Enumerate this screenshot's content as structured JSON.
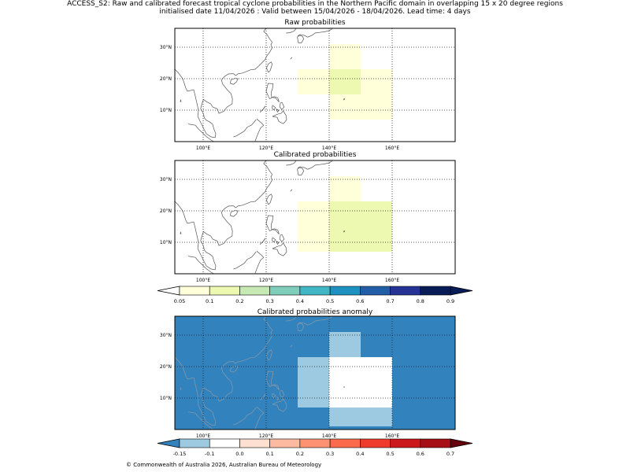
{
  "header": {
    "line1": "ACCESS_S2: Raw and calibrated forecast tropical cyclone probabilities in the Northern Pacific domain in overlapping 15 x 20 degree regions",
    "line2": "initialised date 11/04/2026 :  Valid between 15/04/2026 - 18/04/2026. Lead time: 4 days"
  },
  "map_axes": {
    "lon_ticks": [
      "100°E",
      "120°E",
      "140°E",
      "160°E"
    ],
    "lat_ticks": [
      "30°N",
      "20°N",
      "10°N"
    ]
  },
  "panels": [
    {
      "title": "Raw probabilities",
      "cells": [
        {
          "lon": [
            140,
            150
          ],
          "lat": [
            20,
            31
          ],
          "color": "#ffffd9"
        },
        {
          "lon": [
            130,
            140
          ],
          "lat": [
            15,
            23
          ],
          "color": "#ffffd9"
        },
        {
          "lon": [
            140,
            150
          ],
          "lat": [
            15,
            23
          ],
          "color": "#edf8b1"
        },
        {
          "lon": [
            150,
            160
          ],
          "lat": [
            15,
            23
          ],
          "color": "#ffffd9"
        },
        {
          "lon": [
            140,
            160
          ],
          "lat": [
            7,
            15
          ],
          "color": "#ffffd9"
        }
      ]
    },
    {
      "title": "Calibrated probabilities",
      "cells": [
        {
          "lon": [
            140,
            150
          ],
          "lat": [
            23,
            31
          ],
          "color": "#ffffd9"
        },
        {
          "lon": [
            130,
            140
          ],
          "lat": [
            7,
            23
          ],
          "color": "#ffffd9"
        },
        {
          "lon": [
            140,
            160
          ],
          "lat": [
            7,
            23
          ],
          "color": "#edf8b1"
        }
      ]
    },
    {
      "title": "Calibrated probabilities anomaly",
      "background": "#3182bd",
      "cells": [
        {
          "lon": [
            140,
            150
          ],
          "lat": [
            23,
            31
          ],
          "color": "#9ecae1"
        },
        {
          "lon": [
            130,
            140
          ],
          "lat": [
            7,
            23
          ],
          "color": "#9ecae1"
        },
        {
          "lon": [
            140,
            160
          ],
          "lat": [
            7,
            23
          ],
          "color": "#ffffff"
        },
        {
          "lon": [
            140,
            160
          ],
          "lat": [
            1,
            7
          ],
          "color": "#9ecae1"
        }
      ]
    }
  ],
  "colorbar_prob": {
    "ticks": [
      "0.05",
      "0.1",
      "0.2",
      "0.3",
      "0.4",
      "0.5",
      "0.6",
      "0.7",
      "0.8",
      "0.9"
    ],
    "under": "#ffffff",
    "over": "#081d58",
    "colors": [
      "#ffffd9",
      "#edf8b1",
      "#c7e9b4",
      "#7fcdbb",
      "#41b6c4",
      "#1d91c0",
      "#225ea8",
      "#253494",
      "#081d58"
    ]
  },
  "colorbar_anom": {
    "ticks": [
      "-0.15",
      "-0.1",
      "0.0",
      "0.1",
      "0.2",
      "0.3",
      "0.4",
      "0.5",
      "0.6",
      "0.7"
    ],
    "under": "#3182bd",
    "over": "#67000d",
    "colors": [
      "#9ecae1",
      "#ffffff",
      "#fee0d2",
      "#fcbba1",
      "#fc9272",
      "#fb6a4a",
      "#ef3b2c",
      "#cb181d",
      "#a50f15"
    ]
  },
  "footer": {
    "credit": "© Commonwealth of Australia 2026, Australian Bureau of Meteorology"
  }
}
